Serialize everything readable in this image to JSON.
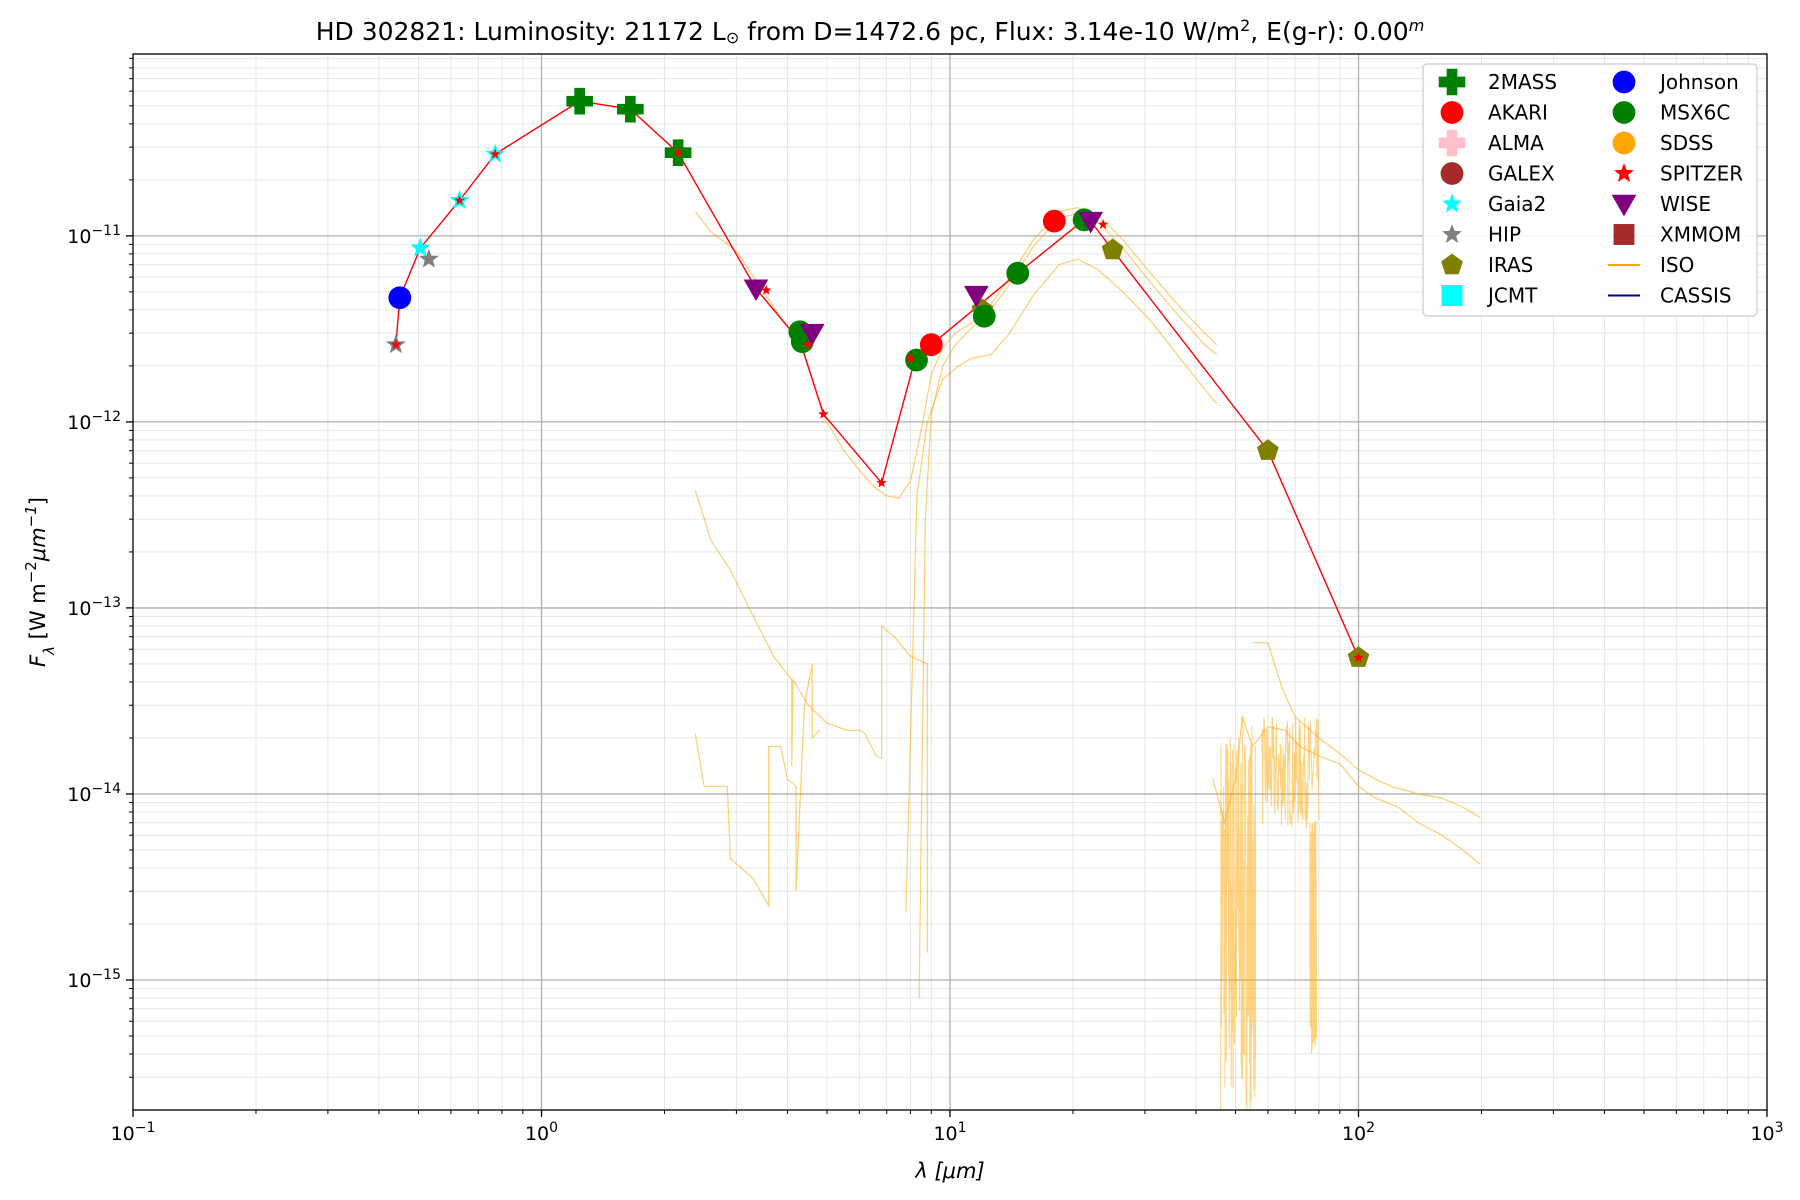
{
  "chart_data": {
    "type": "scatter",
    "title": {
      "star": "HD 302821:",
      "lum_prefix": "Luminosity: 21172 L",
      "lum_unit": "⊙",
      "dist_part": " from D=1472.6 pc, Flux: 3.14e-10 W/m",
      "flux_exp": "2",
      "ext_part": ", E(g-r): 0.00",
      "ext_sup": "m"
    },
    "xlabel": "λ [μm]",
    "ylabel": {
      "main": "F",
      "sub": "λ",
      "rest1": " [W m",
      "exp1": "−2",
      "rest2": "μm",
      "exp2": "−1",
      "rest3": "]"
    },
    "x_scale": "log",
    "y_scale": "log",
    "xlim": [
      0.1,
      1000
    ],
    "ylim": [
      2e-16,
      9.5e-11
    ],
    "x_ticks": [
      {
        "value": 0.1,
        "base": "10",
        "exp": "−1"
      },
      {
        "value": 1,
        "base": "10",
        "exp": "0"
      },
      {
        "value": 10,
        "base": "10",
        "exp": "1"
      },
      {
        "value": 100,
        "base": "10",
        "exp": "2"
      },
      {
        "value": 1000,
        "base": "10",
        "exp": "3"
      }
    ],
    "y_ticks": [
      {
        "value": 1e-15,
        "base": "10",
        "exp": "−15"
      },
      {
        "value": 1e-14,
        "base": "10",
        "exp": "−14"
      },
      {
        "value": 1e-13,
        "base": "10",
        "exp": "−13"
      },
      {
        "value": 1e-12,
        "base": "10",
        "exp": "−12"
      },
      {
        "value": 1e-11,
        "base": "10",
        "exp": "−11"
      }
    ],
    "grid": true,
    "legend_position": "top-right",
    "legend_columns": 2,
    "sed_line": {
      "color": "#ff0000",
      "points": [
        [
          0.44,
          2.6e-12
        ],
        [
          0.45,
          4.65e-12
        ],
        [
          0.505,
          8.6e-12
        ],
        [
          0.63,
          1.55e-11
        ],
        [
          0.77,
          2.75e-11
        ],
        [
          1.24,
          5.3e-11
        ],
        [
          1.65,
          4.8e-11
        ],
        [
          2.16,
          2.8e-11
        ],
        [
          3.35,
          5.2e-12
        ],
        [
          4.3,
          2.7e-12
        ],
        [
          4.9,
          1.1e-12
        ],
        [
          6.8,
          4.7e-13
        ],
        [
          8.2,
          2.15e-12
        ],
        [
          9.0,
          2.6e-12
        ],
        [
          14.65,
          6.3e-12
        ],
        [
          21.3,
          1.22e-11
        ],
        [
          22.1,
          1.2e-11
        ],
        [
          25,
          8.4e-12
        ],
        [
          60,
          7e-13
        ],
        [
          100,
          5.4e-14
        ]
      ]
    },
    "iso_spectra": [
      [
        [
          2.38,
          1.35e-11
        ],
        [
          2.6,
          1.05e-11
        ],
        [
          3.0,
          8.3e-12
        ],
        [
          3.4,
          5.5e-12
        ],
        [
          3.8,
          3.8e-12
        ],
        [
          4.3,
          2.6e-12
        ],
        [
          4.6,
          1.7e-12
        ],
        [
          5.0,
          1e-12
        ],
        [
          5.5,
          7e-13
        ],
        [
          6.0,
          5.5e-13
        ],
        [
          6.5,
          4.5e-13
        ],
        [
          7.0,
          4e-13
        ],
        [
          7.5,
          3.9e-13
        ],
        [
          8.0,
          4.8e-13
        ],
        [
          8.5,
          9e-13
        ],
        [
          9.0,
          1.8e-12
        ],
        [
          9.6,
          2.5e-12
        ],
        [
          10.3,
          3e-12
        ],
        [
          11.3,
          3.4e-12
        ],
        [
          12.6,
          4.3e-12
        ],
        [
          14.0,
          6e-12
        ],
        [
          16.0,
          9.5e-12
        ],
        [
          18.5,
          1.35e-11
        ],
        [
          20.5,
          1.42e-11
        ],
        [
          23.0,
          1.3e-11
        ],
        [
          26.5,
          9.5e-12
        ],
        [
          31.0,
          6.3e-12
        ],
        [
          36.0,
          4.3e-12
        ],
        [
          42.0,
          3e-12
        ],
        [
          45.0,
          2.6e-12
        ]
      ],
      [
        [
          8.4,
          8e-16
        ],
        [
          8.7,
          3e-13
        ],
        [
          9.0,
          1.1e-12
        ],
        [
          9.6,
          2e-12
        ],
        [
          10.3,
          2.6e-12
        ],
        [
          11.3,
          3.2e-12
        ],
        [
          12.6,
          4e-12
        ],
        [
          14.0,
          5.5e-12
        ],
        [
          16.0,
          8.8e-12
        ],
        [
          18.5,
          1.25e-11
        ],
        [
          20.5,
          1.32e-11
        ],
        [
          23.0,
          1.2e-11
        ],
        [
          26.5,
          8.6e-12
        ],
        [
          31.0,
          5.6e-12
        ],
        [
          36.0,
          3.8e-12
        ],
        [
          42.0,
          2.6e-12
        ],
        [
          45.0,
          2.3e-12
        ]
      ],
      [
        [
          7.8,
          2.3e-15
        ],
        [
          8.3,
          4e-13
        ],
        [
          8.8,
          1e-12
        ],
        [
          9.6,
          1.7e-12
        ],
        [
          10.5,
          2e-12
        ],
        [
          11.3,
          2.2e-12
        ],
        [
          12.6,
          2.3e-12
        ],
        [
          14.0,
          3e-12
        ],
        [
          16.0,
          4.8e-12
        ],
        [
          18.5,
          7e-12
        ],
        [
          20.5,
          7.5e-12
        ],
        [
          23.0,
          6.6e-12
        ],
        [
          26.5,
          5e-12
        ],
        [
          31.0,
          3.5e-12
        ],
        [
          36.0,
          2.3e-12
        ],
        [
          42.0,
          1.5e-12
        ],
        [
          45.0,
          1.25e-12
        ]
      ],
      [
        [
          2.38,
          4.3e-13
        ],
        [
          2.6,
          2.3e-13
        ],
        [
          2.9,
          1.6e-13
        ],
        [
          3.3,
          9e-14
        ],
        [
          3.7,
          5.5e-14
        ],
        [
          4.1,
          4.1e-14
        ],
        [
          4.1,
          1.4e-14
        ],
        [
          4.13,
          4.1e-14
        ],
        [
          4.5,
          3e-14
        ],
        [
          5.0,
          2.4e-14
        ],
        [
          5.6,
          2.2e-14
        ],
        [
          6.0,
          2.2e-14
        ],
        [
          6.2,
          2.1e-14
        ],
        [
          6.6,
          1.6e-14
        ],
        [
          6.8,
          1.55e-14
        ],
        [
          6.8,
          8e-14
        ],
        [
          7.3,
          7e-14
        ],
        [
          8.0,
          5.5e-14
        ],
        [
          8.8,
          5e-14
        ],
        [
          8.8,
          1.4e-15
        ]
      ],
      [
        [
          2.38,
          2.1e-14
        ],
        [
          2.5,
          1.1e-14
        ],
        [
          2.85,
          1.1e-14
        ],
        [
          2.9,
          4.5e-15
        ],
        [
          3.3,
          3.5e-15
        ],
        [
          3.6,
          2.5e-15
        ],
        [
          3.6,
          1.8e-14
        ],
        [
          3.85,
          1.8e-14
        ],
        [
          4.0,
          1.2e-14
        ],
        [
          4.2,
          1.1e-14
        ],
        [
          4.2,
          3e-15
        ],
        [
          4.4,
          3e-14
        ],
        [
          4.6,
          5e-14
        ],
        [
          4.6,
          2e-14
        ],
        [
          4.8,
          2.2e-14
        ]
      ],
      [
        [
          55,
          6.5e-14
        ],
        [
          60,
          6.5e-14
        ],
        [
          65,
          3.7e-14
        ],
        [
          70,
          2.6e-14
        ],
        [
          80,
          2e-14
        ],
        [
          90,
          1.65e-14
        ],
        [
          100,
          1.35e-14
        ],
        [
          110,
          1.2e-14
        ],
        [
          120,
          1.1e-14
        ],
        [
          140,
          1e-14
        ],
        [
          160,
          9.5e-15
        ],
        [
          180,
          8.5e-15
        ],
        [
          198,
          7.5e-15
        ]
      ],
      [
        [
          44,
          1.2e-14
        ],
        [
          47,
          7e-15
        ],
        [
          50,
          1.2e-14
        ],
        [
          52,
          2.6e-14
        ],
        [
          55,
          1.8e-14
        ],
        [
          60,
          2.3e-14
        ],
        [
          66,
          2.2e-14
        ],
        [
          72,
          1.8e-14
        ],
        [
          80,
          1.6e-14
        ],
        [
          90,
          1.45e-14
        ],
        [
          100,
          1.1e-14
        ],
        [
          110,
          9.5e-15
        ],
        [
          125,
          8.5e-15
        ],
        [
          140,
          7e-15
        ],
        [
          160,
          6e-15
        ],
        [
          180,
          5e-15
        ],
        [
          198,
          4.2e-15
        ]
      ]
    ],
    "iso_noise_ranges": [
      {
        "xmin": 46,
        "xmax": 56,
        "ymin": 2e-16,
        "ymax": 2.7e-14
      },
      {
        "xmin": 58,
        "xmax": 80,
        "ymin": 6.5e-15,
        "ymax": 2.6e-14
      },
      {
        "xmin": 76,
        "xmax": 79,
        "ymin": 4e-16,
        "ymax": 8e-15
      }
    ],
    "series": [
      {
        "name": "2MASS",
        "marker": "plus",
        "color": "#008000",
        "points": [
          [
            1.24,
            5.3e-11
          ],
          [
            1.65,
            4.8e-11
          ],
          [
            2.16,
            2.8e-11
          ]
        ]
      },
      {
        "name": "AKARI",
        "marker": "circle",
        "color": "#ff0000",
        "points": [
          [
            9.0,
            2.6e-12
          ],
          [
            18.0,
            1.2e-11
          ]
        ]
      },
      {
        "name": "ALMA",
        "marker": "plus",
        "color": "#ffc0cb",
        "points": []
      },
      {
        "name": "GALEX",
        "marker": "circle",
        "color": "#a52a2a",
        "points": []
      },
      {
        "name": "Gaia2",
        "marker": "star",
        "color": "#00ffff",
        "points": [
          [
            0.505,
            8.6e-12
          ],
          [
            0.63,
            1.55e-11
          ],
          [
            0.77,
            2.75e-11
          ]
        ]
      },
      {
        "name": "HIP",
        "marker": "star",
        "color": "#808080",
        "points": [
          [
            0.44,
            2.6e-12
          ],
          [
            0.53,
            7.5e-12
          ]
        ]
      },
      {
        "name": "IRAS",
        "marker": "pentagon",
        "color": "#808000",
        "points": [
          [
            12,
            4e-12
          ],
          [
            25,
            8.4e-12
          ],
          [
            60,
            7e-13
          ],
          [
            100,
            5.4e-14
          ]
        ]
      },
      {
        "name": "JCMT",
        "marker": "square",
        "color": "#00ffff",
        "points": []
      },
      {
        "name": "Johnson",
        "marker": "circle",
        "color": "#0000ff",
        "points": [
          [
            0.45,
            4.65e-12
          ]
        ]
      },
      {
        "name": "MSX6C",
        "marker": "circle",
        "color": "#008000",
        "points": [
          [
            4.29,
            3.05e-12
          ],
          [
            4.35,
            2.7e-12
          ],
          [
            8.28,
            2.15e-12
          ],
          [
            12.13,
            3.7e-12
          ],
          [
            14.65,
            6.3e-12
          ],
          [
            21.3,
            1.22e-11
          ]
        ]
      },
      {
        "name": "SDSS",
        "marker": "circle",
        "color": "#ffa500",
        "points": []
      },
      {
        "name": "SPITZER",
        "marker": "star",
        "color": "#ff0000",
        "points": [
          [
            0.44,
            2.6e-12
          ],
          [
            0.63,
            1.55e-11
          ],
          [
            0.77,
            2.75e-11
          ],
          [
            2.16,
            2.8e-11
          ],
          [
            3.55,
            5.1e-12
          ],
          [
            4.49,
            2.6e-12
          ],
          [
            4.9,
            1.1e-12
          ],
          [
            6.8,
            4.7e-13
          ],
          [
            8.0,
            2.2e-12
          ],
          [
            23.7,
            1.15e-11
          ],
          [
            100,
            5.4e-14
          ]
        ]
      },
      {
        "name": "WISE",
        "marker": "triangle-down",
        "color": "#800080",
        "points": [
          [
            3.35,
            5.2e-12
          ],
          [
            4.6,
            3e-12
          ],
          [
            11.6,
            4.8e-12
          ],
          [
            22.1,
            1.2e-11
          ]
        ]
      },
      {
        "name": "XMMOM",
        "marker": "square",
        "color": "#a52a2a",
        "points": []
      },
      {
        "name": "ISO",
        "marker": "line",
        "color": "#ffa500",
        "points": []
      },
      {
        "name": "CASSIS",
        "marker": "line",
        "color": "#00008b",
        "points": []
      }
    ]
  }
}
